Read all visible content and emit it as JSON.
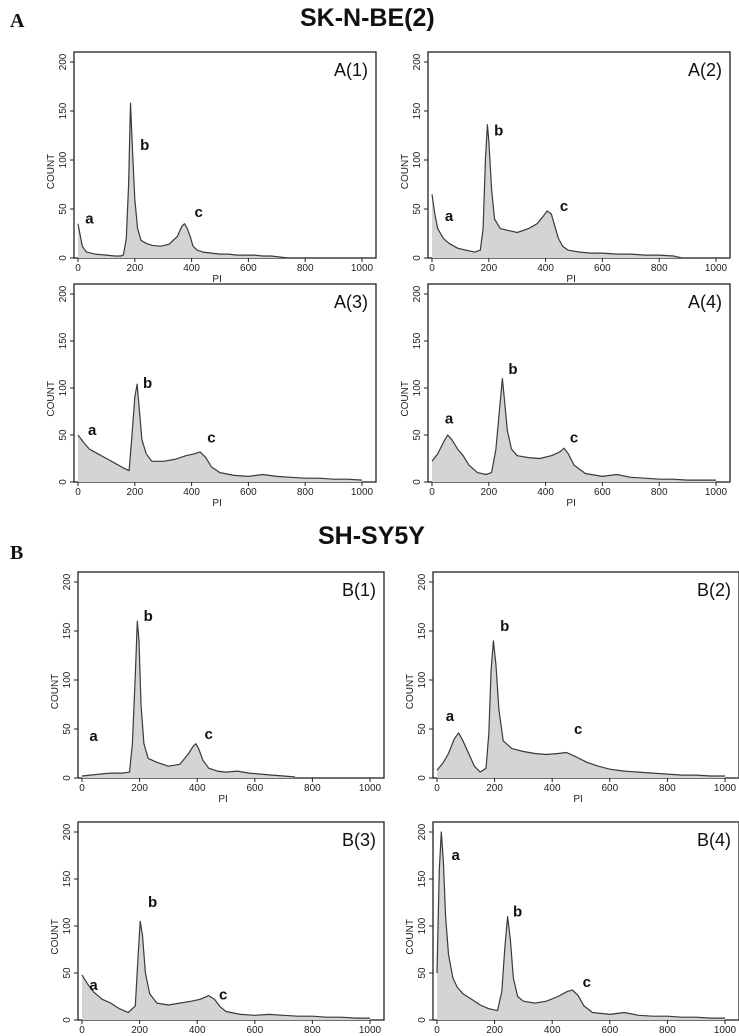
{
  "figure": {
    "group_a": {
      "letter": "A",
      "title": "SK-N-BE(2)"
    },
    "group_b": {
      "letter": "B",
      "title": "SH-SY5Y"
    }
  },
  "colors": {
    "line": "#3a3a3a",
    "fill": "#d4d4d4",
    "frame": "#222222"
  },
  "chart_data": [
    {
      "id": "A(1)",
      "type": "line",
      "title": "A(1)",
      "xlabel": "PI",
      "ylabel": "COUNT",
      "xlim": [
        0,
        1000
      ],
      "ylim": [
        0,
        200
      ],
      "xticks": [
        0,
        200,
        400,
        600,
        800,
        1000
      ],
      "yticks": [
        0,
        50,
        100,
        150,
        200
      ],
      "peak_labels": [
        {
          "text": "a",
          "x": 40,
          "y": 35
        },
        {
          "text": "b",
          "x": 235,
          "y": 110
        },
        {
          "text": "c",
          "x": 425,
          "y": 42
        }
      ],
      "x": [
        0,
        15,
        30,
        60,
        100,
        130,
        150,
        160,
        170,
        178,
        185,
        192,
        200,
        210,
        222,
        240,
        260,
        290,
        320,
        350,
        365,
        375,
        385,
        395,
        405,
        420,
        440,
        470,
        500,
        530,
        560,
        590,
        620,
        650,
        680,
        710,
        740
      ],
      "y": [
        35,
        12,
        6,
        4,
        3,
        2,
        2,
        3,
        20,
        75,
        158,
        110,
        60,
        30,
        18,
        15,
        13,
        12,
        14,
        22,
        32,
        35,
        30,
        22,
        12,
        8,
        6,
        5,
        4,
        4,
        3,
        3,
        3,
        2,
        2,
        1,
        0
      ]
    },
    {
      "id": "A(2)",
      "type": "line",
      "title": "A(2)",
      "xlabel": "PI",
      "ylabel": "COUNT",
      "xlim": [
        0,
        1000
      ],
      "ylim": [
        0,
        200
      ],
      "xticks": [
        0,
        200,
        400,
        600,
        800,
        1000
      ],
      "yticks": [
        0,
        50,
        100,
        150,
        200
      ],
      "peak_labels": [
        {
          "text": "a",
          "x": 60,
          "y": 38
        },
        {
          "text": "b",
          "x": 235,
          "y": 125
        },
        {
          "text": "c",
          "x": 465,
          "y": 48
        }
      ],
      "x": [
        0,
        10,
        20,
        40,
        60,
        90,
        120,
        150,
        170,
        180,
        188,
        195,
        200,
        210,
        220,
        240,
        270,
        300,
        340,
        370,
        390,
        405,
        420,
        430,
        445,
        460,
        480,
        520,
        560,
        600,
        650,
        700,
        750,
        800,
        850,
        880
      ],
      "y": [
        65,
        45,
        30,
        20,
        15,
        10,
        8,
        6,
        8,
        30,
        100,
        136,
        120,
        70,
        40,
        30,
        28,
        26,
        30,
        35,
        42,
        48,
        45,
        35,
        20,
        12,
        8,
        6,
        5,
        5,
        4,
        4,
        3,
        3,
        2,
        0
      ]
    },
    {
      "id": "A(3)",
      "type": "line",
      "title": "A(3)",
      "xlabel": "PI",
      "ylabel": "COUNT",
      "xlim": [
        0,
        1000
      ],
      "ylim": [
        0,
        200
      ],
      "xticks": [
        0,
        200,
        400,
        600,
        800,
        1000
      ],
      "yticks": [
        0,
        50,
        100,
        150,
        200
      ],
      "peak_labels": [
        {
          "text": "a",
          "x": 50,
          "y": 50
        },
        {
          "text": "b",
          "x": 245,
          "y": 100
        },
        {
          "text": "c",
          "x": 470,
          "y": 42
        }
      ],
      "x": [
        0,
        20,
        40,
        70,
        100,
        130,
        160,
        180,
        190,
        200,
        208,
        215,
        225,
        240,
        260,
        300,
        340,
        380,
        410,
        430,
        450,
        470,
        500,
        550,
        600,
        650,
        700,
        750,
        800,
        850,
        900,
        950,
        1000
      ],
      "y": [
        50,
        42,
        35,
        30,
        25,
        20,
        15,
        12,
        50,
        90,
        104,
        80,
        45,
        30,
        22,
        22,
        24,
        28,
        30,
        32,
        26,
        16,
        10,
        7,
        6,
        8,
        6,
        5,
        4,
        4,
        3,
        3,
        2
      ]
    },
    {
      "id": "A(4)",
      "type": "line",
      "title": "A(4)",
      "xlabel": "PI",
      "ylabel": "COUNT",
      "xlim": [
        0,
        1000
      ],
      "ylim": [
        0,
        200
      ],
      "xticks": [
        0,
        200,
        400,
        600,
        800,
        1000
      ],
      "yticks": [
        0,
        50,
        100,
        150,
        200
      ],
      "peak_labels": [
        {
          "text": "a",
          "x": 60,
          "y": 62
        },
        {
          "text": "b",
          "x": 285,
          "y": 115
        },
        {
          "text": "c",
          "x": 500,
          "y": 42
        }
      ],
      "x": [
        0,
        20,
        40,
        55,
        70,
        90,
        110,
        130,
        160,
        190,
        210,
        225,
        240,
        248,
        255,
        265,
        280,
        300,
        340,
        380,
        420,
        450,
        465,
        480,
        500,
        540,
        600,
        650,
        700,
        750,
        800,
        850,
        900,
        950,
        1000
      ],
      "y": [
        22,
        30,
        42,
        50,
        45,
        35,
        28,
        18,
        10,
        8,
        10,
        35,
        85,
        110,
        88,
        55,
        35,
        28,
        26,
        25,
        28,
        32,
        36,
        30,
        18,
        9,
        6,
        8,
        5,
        4,
        3,
        3,
        2,
        2,
        2
      ]
    },
    {
      "id": "B(1)",
      "type": "line",
      "title": "B(1)",
      "xlabel": "PI",
      "ylabel": "COUNT",
      "xlim": [
        0,
        1000
      ],
      "ylim": [
        0,
        200
      ],
      "xticks": [
        0,
        200,
        400,
        600,
        800,
        1000
      ],
      "yticks": [
        0,
        50,
        100,
        150,
        200
      ],
      "peak_labels": [
        {
          "text": "a",
          "x": 40,
          "y": 38
        },
        {
          "text": "b",
          "x": 230,
          "y": 160
        },
        {
          "text": "c",
          "x": 440,
          "y": 40
        }
      ],
      "x": [
        0,
        30,
        60,
        100,
        140,
        165,
        175,
        185,
        192,
        198,
        205,
        215,
        230,
        260,
        300,
        340,
        370,
        385,
        395,
        405,
        420,
        440,
        470,
        500,
        540,
        580,
        620,
        660,
        700,
        740
      ],
      "y": [
        2,
        3,
        4,
        5,
        5,
        6,
        35,
        105,
        160,
        140,
        75,
        35,
        20,
        16,
        12,
        14,
        25,
        32,
        35,
        30,
        18,
        10,
        7,
        6,
        7,
        5,
        4,
        3,
        2,
        1
      ]
    },
    {
      "id": "B(2)",
      "type": "line",
      "title": "B(2)",
      "xlabel": "PI",
      "ylabel": "COUNT",
      "xlim": [
        0,
        1000
      ],
      "ylim": [
        0,
        200
      ],
      "xticks": [
        0,
        200,
        400,
        600,
        800,
        1000
      ],
      "yticks": [
        0,
        50,
        100,
        150,
        200
      ],
      "peak_labels": [
        {
          "text": "a",
          "x": 45,
          "y": 58
        },
        {
          "text": "b",
          "x": 235,
          "y": 150
        },
        {
          "text": "c",
          "x": 490,
          "y": 45
        }
      ],
      "x": [
        0,
        20,
        40,
        60,
        75,
        90,
        110,
        130,
        150,
        170,
        180,
        188,
        196,
        205,
        215,
        230,
        260,
        300,
        340,
        380,
        420,
        450,
        480,
        520,
        560,
        600,
        650,
        700,
        750,
        800,
        850,
        900,
        950,
        1000
      ],
      "y": [
        8,
        15,
        25,
        40,
        46,
        38,
        25,
        12,
        6,
        10,
        45,
        110,
        140,
        115,
        70,
        38,
        30,
        27,
        25,
        24,
        25,
        26,
        22,
        16,
        12,
        9,
        7,
        6,
        5,
        4,
        3,
        3,
        2,
        2
      ]
    },
    {
      "id": "B(3)",
      "type": "line",
      "title": "B(3)",
      "xlabel": "PI",
      "ylabel": "COUNT",
      "xlim": [
        0,
        1000
      ],
      "ylim": [
        0,
        200
      ],
      "xticks": [
        0,
        200,
        400,
        600,
        800,
        1000
      ],
      "yticks": [
        0,
        50,
        100,
        150,
        200
      ],
      "peak_labels": [
        {
          "text": "a",
          "x": 40,
          "y": 32
        },
        {
          "text": "b",
          "x": 245,
          "y": 120
        },
        {
          "text": "c",
          "x": 490,
          "y": 22
        }
      ],
      "x": [
        0,
        20,
        40,
        70,
        100,
        130,
        160,
        185,
        195,
        202,
        210,
        220,
        235,
        260,
        300,
        340,
        380,
        410,
        440,
        460,
        480,
        500,
        550,
        600,
        650,
        700,
        750,
        800,
        850,
        900,
        950,
        1000
      ],
      "y": [
        48,
        38,
        30,
        22,
        18,
        12,
        8,
        15,
        70,
        105,
        90,
        50,
        28,
        18,
        16,
        18,
        20,
        22,
        26,
        22,
        14,
        9,
        6,
        5,
        6,
        5,
        4,
        4,
        3,
        3,
        2,
        2
      ]
    },
    {
      "id": "B(4)",
      "type": "line",
      "title": "B(4)",
      "xlabel": "PI",
      "ylabel": "COUNT",
      "xlim": [
        0,
        1000
      ],
      "ylim": [
        0,
        200
      ],
      "xticks": [
        0,
        200,
        400,
        600,
        800,
        1000
      ],
      "yticks": [
        0,
        50,
        100,
        150,
        200
      ],
      "peak_labels": [
        {
          "text": "a",
          "x": 65,
          "y": 170
        },
        {
          "text": "b",
          "x": 280,
          "y": 110
        },
        {
          "text": "c",
          "x": 520,
          "y": 35
        }
      ],
      "x": [
        0,
        8,
        15,
        22,
        30,
        40,
        55,
        70,
        90,
        120,
        150,
        180,
        210,
        225,
        235,
        245,
        255,
        265,
        280,
        300,
        340,
        380,
        420,
        450,
        470,
        490,
        510,
        540,
        600,
        650,
        700,
        750,
        800,
        850,
        900,
        950,
        1000
      ],
      "y": [
        50,
        160,
        200,
        170,
        110,
        70,
        45,
        35,
        28,
        22,
        16,
        12,
        10,
        30,
        75,
        110,
        85,
        45,
        25,
        20,
        18,
        20,
        25,
        30,
        32,
        26,
        15,
        8,
        6,
        8,
        5,
        4,
        4,
        3,
        3,
        2,
        2
      ]
    }
  ]
}
